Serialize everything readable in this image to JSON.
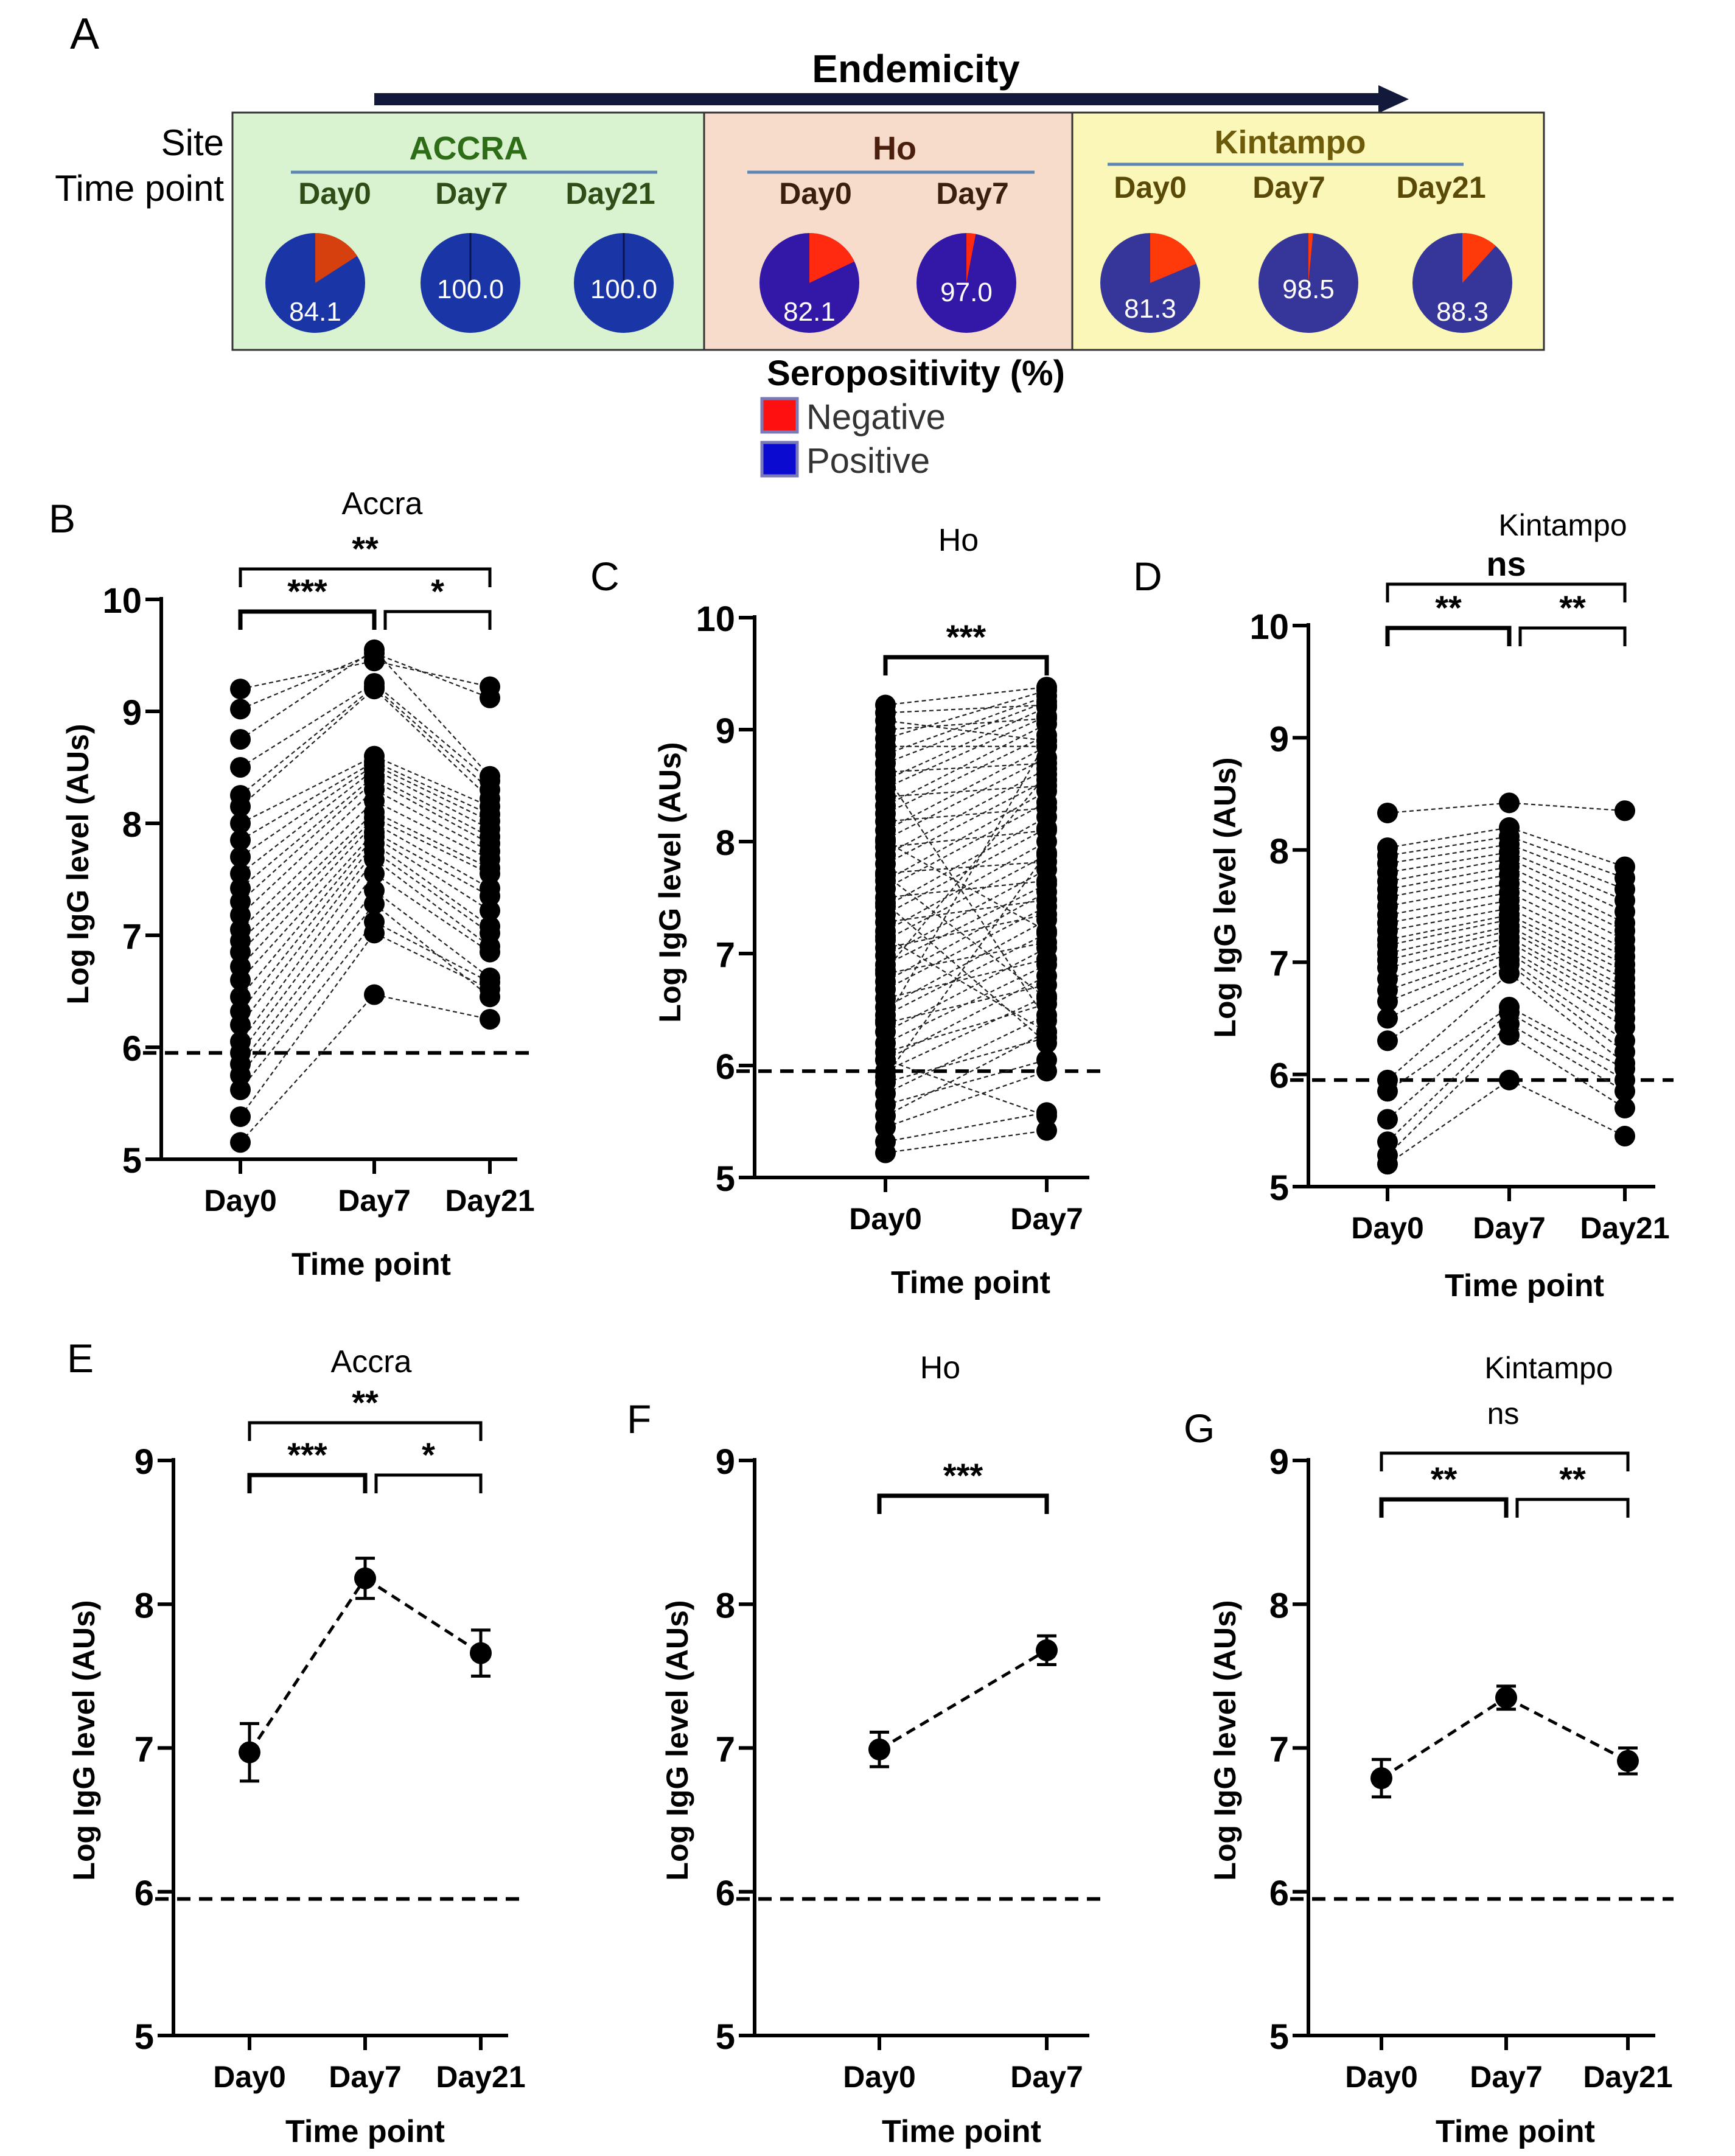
{
  "panel_a": {
    "letter": "A",
    "endemicity_label": "Endemicity",
    "site_label": "Site",
    "timepoint_label": "Time point",
    "sites": [
      {
        "name": "ACCRA",
        "bg": "#d9f2d0",
        "days": [
          "Day0",
          "Day7",
          "Day21"
        ],
        "positive": [
          84.1,
          100.0,
          100.0
        ],
        "labels": [
          "84.1",
          "100.0",
          "100.0"
        ],
        "pos_color": "#1a35a6",
        "neg_color": "#d6400e"
      },
      {
        "name": "Ho",
        "bg": "#f7dccc",
        "days": [
          "Day0",
          "Day7"
        ],
        "positive": [
          82.1,
          97.0
        ],
        "labels": [
          "82.1",
          "97.0"
        ],
        "pos_color": "#3318a8",
        "neg_color": "#ff2a10"
      },
      {
        "name": "Kintampo",
        "bg": "#fbf7b8",
        "days": [
          "Day0",
          "Day7",
          "Day21"
        ],
        "positive": [
          81.3,
          98.5,
          88.3
        ],
        "labels": [
          "81.3",
          "98.5",
          "88.3"
        ],
        "pos_color": "#35359a",
        "neg_color": "#ff3a0a"
      }
    ],
    "legend_title": "Seropositivity (%)",
    "legend": [
      {
        "label": "Negative",
        "color": "#ff1010"
      },
      {
        "label": "Positive",
        "color": "#0a0ad0"
      }
    ]
  },
  "chart_data": [
    {
      "id": "B",
      "type": "scatter",
      "title": "Accra",
      "xlabel": "Time point",
      "ylabel": "Log IgG level (AUs)",
      "categories": [
        "Day0",
        "Day7",
        "Day21"
      ],
      "ylim": [
        5,
        10
      ],
      "yticks": [
        "5",
        "6",
        "7",
        "8",
        "9",
        "10"
      ],
      "cutoff": 5.95,
      "points": [
        [
          5.15,
          6.47,
          6.25
        ],
        [
          5.38,
          7.02,
          6.52
        ],
        [
          5.62,
          7.12,
          6.58
        ],
        [
          5.75,
          7.28,
          6.45
        ],
        [
          5.85,
          7.4,
          6.62
        ],
        [
          5.95,
          7.55,
          6.85
        ],
        [
          6.05,
          7.68,
          6.9
        ],
        [
          6.2,
          7.75,
          7.02
        ],
        [
          6.32,
          7.82,
          7.08
        ],
        [
          6.45,
          7.88,
          7.22
        ],
        [
          6.6,
          7.92,
          7.35
        ],
        [
          6.72,
          8.0,
          7.42
        ],
        [
          6.85,
          8.05,
          7.55
        ],
        [
          6.95,
          8.1,
          7.6
        ],
        [
          7.05,
          8.2,
          7.68
        ],
        [
          7.18,
          8.3,
          7.75
        ],
        [
          7.3,
          8.38,
          7.82
        ],
        [
          7.42,
          8.42,
          7.88
        ],
        [
          7.55,
          8.48,
          7.95
        ],
        [
          7.7,
          8.52,
          8.02
        ],
        [
          7.85,
          8.55,
          8.08
        ],
        [
          8.0,
          8.6,
          8.15
        ],
        [
          8.15,
          9.2,
          8.22
        ],
        [
          8.25,
          9.22,
          8.3
        ],
        [
          8.5,
          9.25,
          8.38
        ],
        [
          8.75,
          9.55,
          8.42
        ],
        [
          9.02,
          9.52,
          9.12
        ],
        [
          9.2,
          9.45,
          9.22
        ]
      ],
      "sig": [
        {
          "from": 0,
          "to": 1,
          "label": "***",
          "level": 1
        },
        {
          "from": 1,
          "to": 2,
          "label": "*",
          "level": 1
        },
        {
          "from": 0,
          "to": 2,
          "label": "**",
          "level": 2
        }
      ]
    },
    {
      "id": "C",
      "type": "scatter",
      "title": "Ho",
      "xlabel": "Time point",
      "ylabel": "Log IgG level (AUs)",
      "categories": [
        "Day0",
        "Day7"
      ],
      "ylim": [
        5,
        10
      ],
      "yticks": [
        "5",
        "6",
        "7",
        "8",
        "9",
        "10"
      ],
      "cutoff": 5.95,
      "points": [
        [
          5.22,
          5.42
        ],
        [
          5.32,
          5.58
        ],
        [
          5.45,
          5.95
        ],
        [
          5.55,
          6.3
        ],
        [
          5.65,
          6.05
        ],
        [
          5.75,
          6.45
        ],
        [
          5.85,
          6.25
        ],
        [
          5.95,
          6.62
        ],
        [
          6.05,
          6.8
        ],
        [
          6.12,
          6.55
        ],
        [
          6.2,
          6.9
        ],
        [
          6.3,
          7.05
        ],
        [
          6.38,
          6.72
        ],
        [
          6.45,
          7.18
        ],
        [
          6.52,
          7.3
        ],
        [
          6.6,
          6.95
        ],
        [
          6.68,
          7.42
        ],
        [
          6.75,
          7.55
        ],
        [
          6.82,
          7.1
        ],
        [
          6.9,
          7.62
        ],
        [
          6.98,
          7.75
        ],
        [
          7.05,
          7.35
        ],
        [
          7.12,
          7.88
        ],
        [
          7.2,
          8.0
        ],
        [
          7.28,
          7.48
        ],
        [
          7.35,
          8.12
        ],
        [
          7.42,
          8.22
        ],
        [
          7.5,
          7.65
        ],
        [
          7.58,
          8.35
        ],
        [
          7.65,
          8.45
        ],
        [
          7.72,
          7.82
        ],
        [
          7.8,
          8.55
        ],
        [
          7.88,
          8.65
        ],
        [
          7.95,
          8.1
        ],
        [
          8.02,
          8.75
        ],
        [
          8.1,
          8.85
        ],
        [
          8.18,
          8.3
        ],
        [
          8.25,
          8.95
        ],
        [
          8.32,
          9.05
        ],
        [
          8.4,
          8.5
        ],
        [
          8.48,
          9.12
        ],
        [
          8.55,
          9.2
        ],
        [
          8.62,
          8.7
        ],
        [
          8.7,
          9.25
        ],
        [
          8.78,
          9.3
        ],
        [
          8.85,
          8.85
        ],
        [
          8.92,
          9.35
        ],
        [
          9.0,
          9.1
        ],
        [
          9.08,
          8.9
        ],
        [
          9.15,
          9.22
        ],
        [
          9.22,
          9.38
        ],
        [
          6.05,
          5.55
        ],
        [
          7.45,
          6.2
        ],
        [
          8.6,
          6.4
        ],
        [
          6.85,
          8.6
        ],
        [
          7.15,
          6.3
        ],
        [
          5.9,
          7.9
        ],
        [
          8.0,
          7.2
        ],
        [
          6.4,
          8.9
        ],
        [
          7.7,
          6.6
        ]
      ],
      "sig": [
        {
          "from": 0,
          "to": 1,
          "label": "***",
          "level": 1
        }
      ]
    },
    {
      "id": "D",
      "type": "scatter",
      "title": "Kintampo",
      "title_sub": "ns",
      "xlabel": "Time point",
      "ylabel": "Log IgG level (AUs)",
      "categories": [
        "Day0",
        "Day7",
        "Day21"
      ],
      "ylim": [
        5,
        10
      ],
      "yticks": [
        "5",
        "6",
        "7",
        "8",
        "9",
        "10"
      ],
      "cutoff": 5.95,
      "points": [
        [
          5.2,
          5.95,
          5.45
        ],
        [
          5.28,
          6.35,
          5.7
        ],
        [
          5.4,
          6.45,
          5.85
        ],
        [
          5.6,
          6.55,
          5.95
        ],
        [
          5.85,
          6.6,
          6.05
        ],
        [
          5.95,
          6.9,
          6.1
        ],
        [
          6.3,
          6.98,
          6.2
        ],
        [
          6.5,
          7.02,
          6.3
        ],
        [
          6.65,
          7.08,
          6.42
        ],
        [
          6.75,
          7.12,
          6.5
        ],
        [
          6.85,
          7.18,
          6.58
        ],
        [
          6.95,
          7.22,
          6.65
        ],
        [
          7.02,
          7.28,
          6.72
        ],
        [
          7.08,
          7.32,
          6.78
        ],
        [
          7.15,
          7.38,
          6.85
        ],
        [
          7.2,
          7.42,
          6.92
        ],
        [
          7.28,
          7.48,
          6.98
        ],
        [
          7.35,
          7.55,
          7.05
        ],
        [
          7.42,
          7.62,
          7.12
        ],
        [
          7.5,
          7.7,
          7.2
        ],
        [
          7.58,
          7.78,
          7.28
        ],
        [
          7.65,
          7.85,
          7.35
        ],
        [
          7.72,
          7.92,
          7.45
        ],
        [
          7.8,
          7.98,
          7.55
        ],
        [
          7.88,
          8.05,
          7.65
        ],
        [
          7.95,
          8.12,
          7.75
        ],
        [
          8.02,
          8.2,
          7.85
        ],
        [
          8.33,
          8.42,
          8.35
        ]
      ],
      "sig": [
        {
          "from": 0,
          "to": 1,
          "label": "**",
          "level": 1
        },
        {
          "from": 1,
          "to": 2,
          "label": "**",
          "level": 1
        },
        {
          "from": 0,
          "to": 2,
          "label": "ns",
          "level": 2
        }
      ]
    },
    {
      "id": "E",
      "type": "line",
      "title": "Accra",
      "xlabel": "Time point",
      "ylabel": "Log IgG level (AUs)",
      "categories": [
        "Day0",
        "Day7",
        "Day21"
      ],
      "ylim": [
        5,
        9
      ],
      "yticks": [
        "5",
        "6",
        "7",
        "8",
        "9"
      ],
      "cutoff": 5.95,
      "means": [
        6.97,
        8.18,
        7.66
      ],
      "errors": [
        0.2,
        0.14,
        0.16
      ],
      "sig": [
        {
          "from": 0,
          "to": 1,
          "label": "***",
          "level": 1
        },
        {
          "from": 1,
          "to": 2,
          "label": "*",
          "level": 1
        },
        {
          "from": 0,
          "to": 2,
          "label": "**",
          "level": 2
        }
      ]
    },
    {
      "id": "F",
      "type": "line",
      "title": "Ho",
      "xlabel": "Time point",
      "ylabel": "Log IgG level (AUs)",
      "categories": [
        "Day0",
        "Day7"
      ],
      "ylim": [
        5,
        9
      ],
      "yticks": [
        "5",
        "6",
        "7",
        "8",
        "9"
      ],
      "cutoff": 5.95,
      "means": [
        6.99,
        7.68
      ],
      "errors": [
        0.12,
        0.1
      ],
      "sig": [
        {
          "from": 0,
          "to": 1,
          "label": "***",
          "level": 1
        }
      ]
    },
    {
      "id": "G",
      "type": "line",
      "title": "Kintampo",
      "title_sub": "ns",
      "xlabel": "Time point",
      "ylabel": "Log IgG level (AUs)",
      "categories": [
        "Day0",
        "Day7",
        "Day21"
      ],
      "ylim": [
        5,
        9
      ],
      "yticks": [
        "5",
        "6",
        "7",
        "8",
        "9"
      ],
      "cutoff": 5.95,
      "means": [
        6.79,
        7.35,
        6.91
      ],
      "errors": [
        0.13,
        0.08,
        0.09
      ],
      "sig": [
        {
          "from": 0,
          "to": 1,
          "label": "**",
          "level": 1
        },
        {
          "from": 1,
          "to": 2,
          "label": "**",
          "level": 1
        },
        {
          "from": 0,
          "to": 2,
          "label": "",
          "level": 2
        }
      ]
    }
  ]
}
